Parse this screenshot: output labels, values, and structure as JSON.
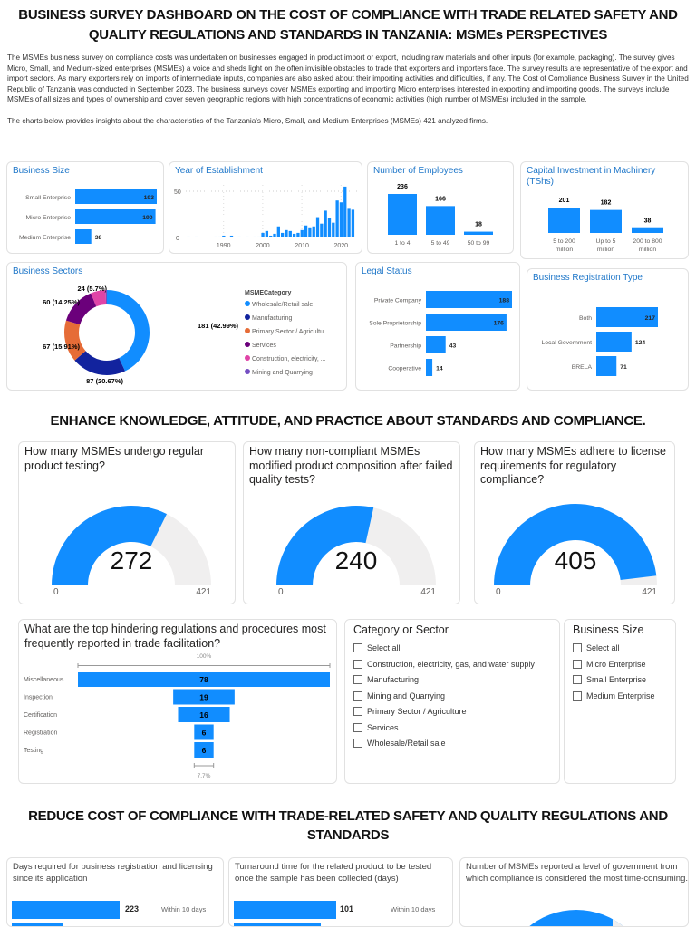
{
  "header": {
    "title_line1": "BUSINESS SURVEY DASHBOARD ON THE COST OF COMPLIANCE WITH TRADE RELATED SAFETY AND",
    "title_line2": "QUALITY REGULATIONS AND STANDARDS IN TANZANIA: MSMEs PERSPECTIVES",
    "intro": "The MSMEs business survey on compliance costs was undertaken on businesses engaged in product import or export, including raw materials and other inputs (for example, packaging). The survey gives Micro, Small, and Medium-sized enterprises (MSMEs) a voice and sheds light on the often invisible obstacles to trade that exporters and importers face. The survey results are representative of the export and import sectors. As many exporters rely on imports of intermediate inputs, companies are also asked about their importing activities and difficulties, if any. The Cost of Compliance Business Survey in the United Republic of Tanzania was conducted in September 2023. The business surveys cover MSMEs exporting and importing Micro enterprises interested in exporting and importing goods. The surveys include MSMEs of all sizes and types of ownership and cover seven geographic regions with high concentrations of economic activities (high number of MSMEs) included in the sample.",
    "intro2": "The charts below provides insights about the characteristics of the Tanzania's Micro, Small, and Medium Enterprises (MSMEs) 421 analyzed firms."
  },
  "sections": {
    "knowledge": "ENHANCE KNOWLEDGE, ATTITUDE, AND PRACTICE ABOUT STANDARDS AND COMPLIANCE.",
    "cost_line1": "REDUCE COST OF COMPLIANCE WITH TRADE-RELATED SAFETY AND QUALITY REGULATIONS AND",
    "cost_line2": "STANDARDS"
  },
  "colors": {
    "bar": "#118dff",
    "title": "#1f77c9",
    "gauge_bg": "#f0efef"
  },
  "chart_data": [
    {
      "id": "business_size",
      "type": "bar",
      "orientation": "horizontal",
      "title": "Business Size",
      "categories": [
        "Small Enterprise",
        "Micro Enterprise",
        "Medium Enterprise"
      ],
      "values": [
        193,
        190,
        38
      ]
    },
    {
      "id": "year",
      "type": "bar",
      "title": "Year of Establishment",
      "x": [
        1981,
        1983,
        1988,
        1989,
        1990,
        1992,
        1994,
        1996,
        1998,
        1999,
        2000,
        2001,
        2002,
        2003,
        2004,
        2005,
        2006,
        2007,
        2008,
        2009,
        2010,
        2011,
        2012,
        2013,
        2014,
        2015,
        2016,
        2017,
        2018,
        2019,
        2020,
        2021,
        2022,
        2023
      ],
      "values": [
        1,
        1,
        1,
        1,
        2,
        2,
        1,
        1,
        1,
        1,
        5,
        7,
        2,
        4,
        12,
        5,
        8,
        7,
        4,
        5,
        8,
        13,
        10,
        12,
        22,
        15,
        29,
        21,
        16,
        40,
        38,
        55,
        31,
        30
      ],
      "yticks": [
        "0",
        "50"
      ],
      "xticks": [
        "1990",
        "2000",
        "2010",
        "2020"
      ]
    },
    {
      "id": "employees",
      "type": "bar",
      "title": "Number of Employees",
      "categories": [
        "1 to 4",
        "5 to 49",
        "50 to 99"
      ],
      "values": [
        236,
        166,
        18
      ]
    },
    {
      "id": "capital",
      "type": "bar",
      "title": "Capital Investment in Machinery (TShs)",
      "categories": [
        "5 to 200 million",
        "Up to 5 million",
        "200 to 800 million"
      ],
      "values": [
        201,
        182,
        38
      ]
    },
    {
      "id": "sectors",
      "type": "pie",
      "donut": true,
      "title": "Business Sectors",
      "legend_title": "MSMECategory",
      "legend": "right",
      "slices": [
        {
          "name": "Wholesale/Retail sale",
          "legend_label": "Wholesale/Retail sale",
          "value": 181,
          "label": "181 (42.99%)",
          "color": "#118dff"
        },
        {
          "name": "Manufacturing",
          "legend_label": "Manufacturing",
          "value": 87,
          "label": "87 (20.67%)",
          "color": "#12239e"
        },
        {
          "name": "Primary Sector / Agriculture",
          "legend_label": "Primary Sector / Agricultu...",
          "value": 67,
          "label": "67 (15.91%)",
          "color": "#e66c37"
        },
        {
          "name": "Services",
          "legend_label": "Services",
          "value": 60,
          "label": "60 (14.25%)",
          "color": "#6b007b"
        },
        {
          "name": "Construction, electricity, gas, and water supply",
          "legend_label": "Construction, electricity, ...",
          "value": 24,
          "label": "24 (5.7%)",
          "color": "#e044a7"
        },
        {
          "name": "Mining and Quarrying",
          "legend_label": "Mining and Quarrying",
          "value": 2,
          "label": "",
          "color": "#744ec2"
        }
      ]
    },
    {
      "id": "legal",
      "type": "bar",
      "orientation": "horizontal",
      "title": "Legal Status",
      "categories": [
        "Private Company",
        "Sole Proprietorship",
        "Partnership",
        "Cooperative"
      ],
      "values": [
        188,
        176,
        43,
        14
      ]
    },
    {
      "id": "registration",
      "type": "bar",
      "orientation": "horizontal",
      "title": "Business Registration Type",
      "categories": [
        "Both",
        "Local Government",
        "BRELA"
      ],
      "values": [
        217,
        124,
        71
      ]
    },
    {
      "id": "funnel",
      "type": "funnel",
      "title": "What are the top hindering regulations and procedures most frequently reported in trade facilitation?",
      "categories": [
        "Miscellaneous",
        "Inspection",
        "Certification",
        "Registration",
        "Testing"
      ],
      "values": [
        78,
        19,
        16,
        6,
        6
      ],
      "top_label": "100%",
      "bottom_label": "7.7%"
    }
  ],
  "gauges": [
    {
      "title": "How many MSMEs undergo regular product testing?",
      "value": 272,
      "min": 0,
      "max": 421
    },
    {
      "title": "How many non-compliant MSMEs modified product composition after failed quality tests?",
      "value": 240,
      "min": 0,
      "max": 421
    },
    {
      "title": "How many MSMEs adhere to license requirements for regulatory compliance?",
      "value": 405,
      "min": 0,
      "max": 421
    }
  ],
  "slicers": {
    "category": {
      "title": "Category or Sector",
      "items": [
        "Select all",
        "Construction, electricity, gas, and water supply",
        "Manufacturing",
        "Mining and Quarrying",
        "Primary Sector / Agriculture",
        "Services",
        "Wholesale/Retail sale"
      ]
    },
    "size": {
      "title": "Business Size",
      "items": [
        "Select all",
        "Micro Enterprise",
        "Small Enterprise",
        "Medium Enterprise"
      ]
    }
  },
  "bottom": [
    {
      "title": "Days required for business registration and licensing since its application",
      "value": 223,
      "label": "Within 10 days"
    },
    {
      "title": "Turnaround time for the related product to be tested once the sample has been collected (days)",
      "value": 101,
      "label": "Within 10 days"
    },
    {
      "title": "Number of MSMEs reported a level of government from which compliance is considered the most time-consuming."
    }
  ]
}
